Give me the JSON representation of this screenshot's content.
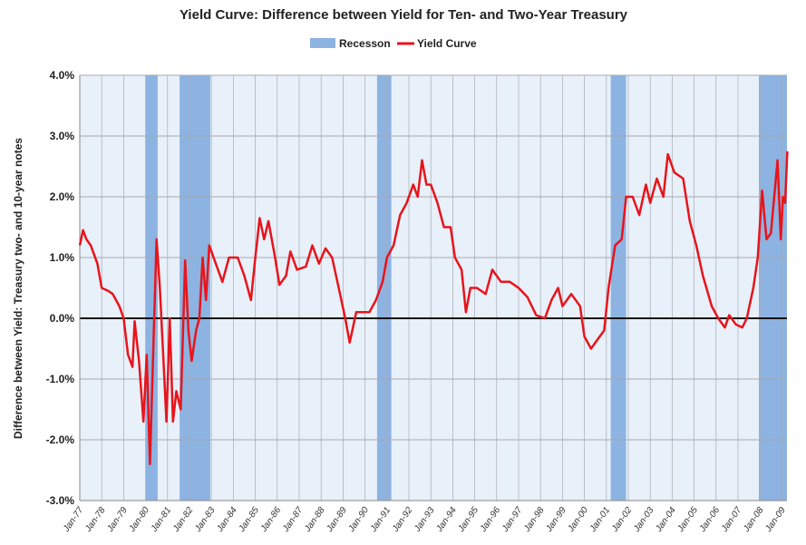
{
  "chart_data": {
    "type": "line",
    "title": "Yield Curve: Difference between Yield for Ten- and Two-Year Treasury",
    "xlabel": "",
    "ylabel": "Difference between Yield: Treasury two- and 10-year notes",
    "ylim": [
      -3,
      4
    ],
    "xlim": [
      1977.0,
      2009.3
    ],
    "grid": true,
    "legend_position": "top-center",
    "legend": [
      "Recesson",
      "Yield Curve"
    ],
    "y_ticks": [
      "4.0%",
      "3.0%",
      "2.0%",
      "1.0%",
      "0.0%",
      "-1.0%",
      "-2.0%",
      "-3.0%"
    ],
    "y_tick_values": [
      4,
      3,
      2,
      1,
      0,
      -1,
      -2,
      -3
    ],
    "x_ticks": [
      "Jan-77",
      "Jan-78",
      "Jan-79",
      "Jan-80",
      "Jan-81",
      "Jan-82",
      "Jan-83",
      "Jan-84",
      "Jan-85",
      "Jan-86",
      "Jan-87",
      "Jan-88",
      "Jan-89",
      "Jan-90",
      "Jan-91",
      "Jan-92",
      "Jan-93",
      "Jan-94",
      "Jan-95",
      "Jan-96",
      "Jan-97",
      "Jan-98",
      "Jan-99",
      "Jan-00",
      "Jan-01",
      "Jan-02",
      "Jan-03",
      "Jan-04",
      "Jan-05",
      "Jan-06",
      "Jan-07",
      "Jan-08",
      "Jan-09"
    ],
    "colors": {
      "recession": "#8db3e2",
      "line": "#e8141b",
      "plot_bg": "#e8f0fa",
      "grid": "#a8aab0"
    },
    "recessions": [
      [
        1980.0,
        1980.55
      ],
      [
        1981.55,
        1982.95
      ],
      [
        1990.55,
        1991.2
      ],
      [
        2001.2,
        2001.9
      ],
      [
        2007.95,
        2009.3
      ]
    ],
    "series": [
      {
        "name": "Yield Curve",
        "x": [
          1977.0,
          1977.15,
          1977.3,
          1977.5,
          1977.8,
          1978.0,
          1978.3,
          1978.5,
          1978.8,
          1979.0,
          1979.2,
          1979.4,
          1979.5,
          1979.7,
          1979.9,
          1980.05,
          1980.2,
          1980.35,
          1980.5,
          1980.65,
          1980.8,
          1980.95,
          1981.1,
          1981.25,
          1981.4,
          1981.6,
          1981.8,
          1981.95,
          1982.1,
          1982.3,
          1982.45,
          1982.6,
          1982.75,
          1982.9,
          1983.2,
          1983.5,
          1983.8,
          1984.2,
          1984.5,
          1984.8,
          1985.0,
          1985.2,
          1985.4,
          1985.6,
          1985.9,
          1986.1,
          1986.4,
          1986.6,
          1986.9,
          1987.3,
          1987.6,
          1987.9,
          1988.2,
          1988.5,
          1988.8,
          1989.1,
          1989.3,
          1989.6,
          1989.9,
          1990.2,
          1990.5,
          1990.8,
          1991.0,
          1991.3,
          1991.6,
          1991.9,
          1992.2,
          1992.4,
          1992.6,
          1992.8,
          1993.0,
          1993.3,
          1993.6,
          1993.9,
          1994.1,
          1994.4,
          1994.6,
          1994.8,
          1995.1,
          1995.5,
          1995.8,
          1996.2,
          1996.6,
          1997.0,
          1997.4,
          1997.8,
          1998.2,
          1998.5,
          1998.8,
          1999.0,
          1999.4,
          1999.8,
          2000.0,
          2000.3,
          2000.6,
          2000.9,
          2001.1,
          2001.4,
          2001.7,
          2001.9,
          2002.2,
          2002.5,
          2002.8,
          2003.0,
          2003.3,
          2003.6,
          2003.8,
          2004.1,
          2004.5,
          2004.8,
          2005.1,
          2005.4,
          2005.8,
          2006.1,
          2006.4,
          2006.6,
          2006.9,
          2007.2,
          2007.4,
          2007.7,
          2007.9,
          2008.1,
          2008.3,
          2008.5,
          2008.8,
          2008.95,
          2009.05,
          2009.15,
          2009.25
        ],
        "y": [
          1.2,
          1.45,
          1.3,
          1.2,
          0.9,
          0.5,
          0.45,
          0.4,
          0.2,
          0.0,
          -0.6,
          -0.8,
          -0.05,
          -0.7,
          -1.7,
          -0.6,
          -2.4,
          -0.5,
          1.3,
          0.5,
          -0.6,
          -1.7,
          0.0,
          -1.7,
          -1.2,
          -1.5,
          0.95,
          -0.2,
          -0.7,
          -0.2,
          0.0,
          1.0,
          0.3,
          1.2,
          0.9,
          0.6,
          1.0,
          1.0,
          0.7,
          0.3,
          1.0,
          1.65,
          1.3,
          1.6,
          1.0,
          0.55,
          0.7,
          1.1,
          0.8,
          0.85,
          1.2,
          0.9,
          1.15,
          1.0,
          0.5,
          0.0,
          -0.4,
          0.1,
          0.1,
          0.1,
          0.3,
          0.6,
          1.0,
          1.2,
          1.7,
          1.9,
          2.2,
          2.0,
          2.6,
          2.2,
          2.2,
          1.9,
          1.5,
          1.5,
          1.0,
          0.8,
          0.1,
          0.5,
          0.5,
          0.4,
          0.8,
          0.6,
          0.6,
          0.5,
          0.35,
          0.05,
          0.0,
          0.3,
          0.5,
          0.2,
          0.4,
          0.2,
          -0.3,
          -0.5,
          -0.35,
          -0.2,
          0.5,
          1.2,
          1.3,
          2.0,
          2.0,
          1.7,
          2.2,
          1.9,
          2.3,
          2.0,
          2.7,
          2.4,
          2.3,
          1.6,
          1.2,
          0.7,
          0.2,
          0.0,
          -0.15,
          0.05,
          -0.1,
          -0.15,
          0.0,
          0.5,
          1.0,
          2.1,
          1.3,
          1.4,
          2.6,
          1.3,
          2.0,
          1.9,
          2.75
        ]
      }
    ]
  }
}
